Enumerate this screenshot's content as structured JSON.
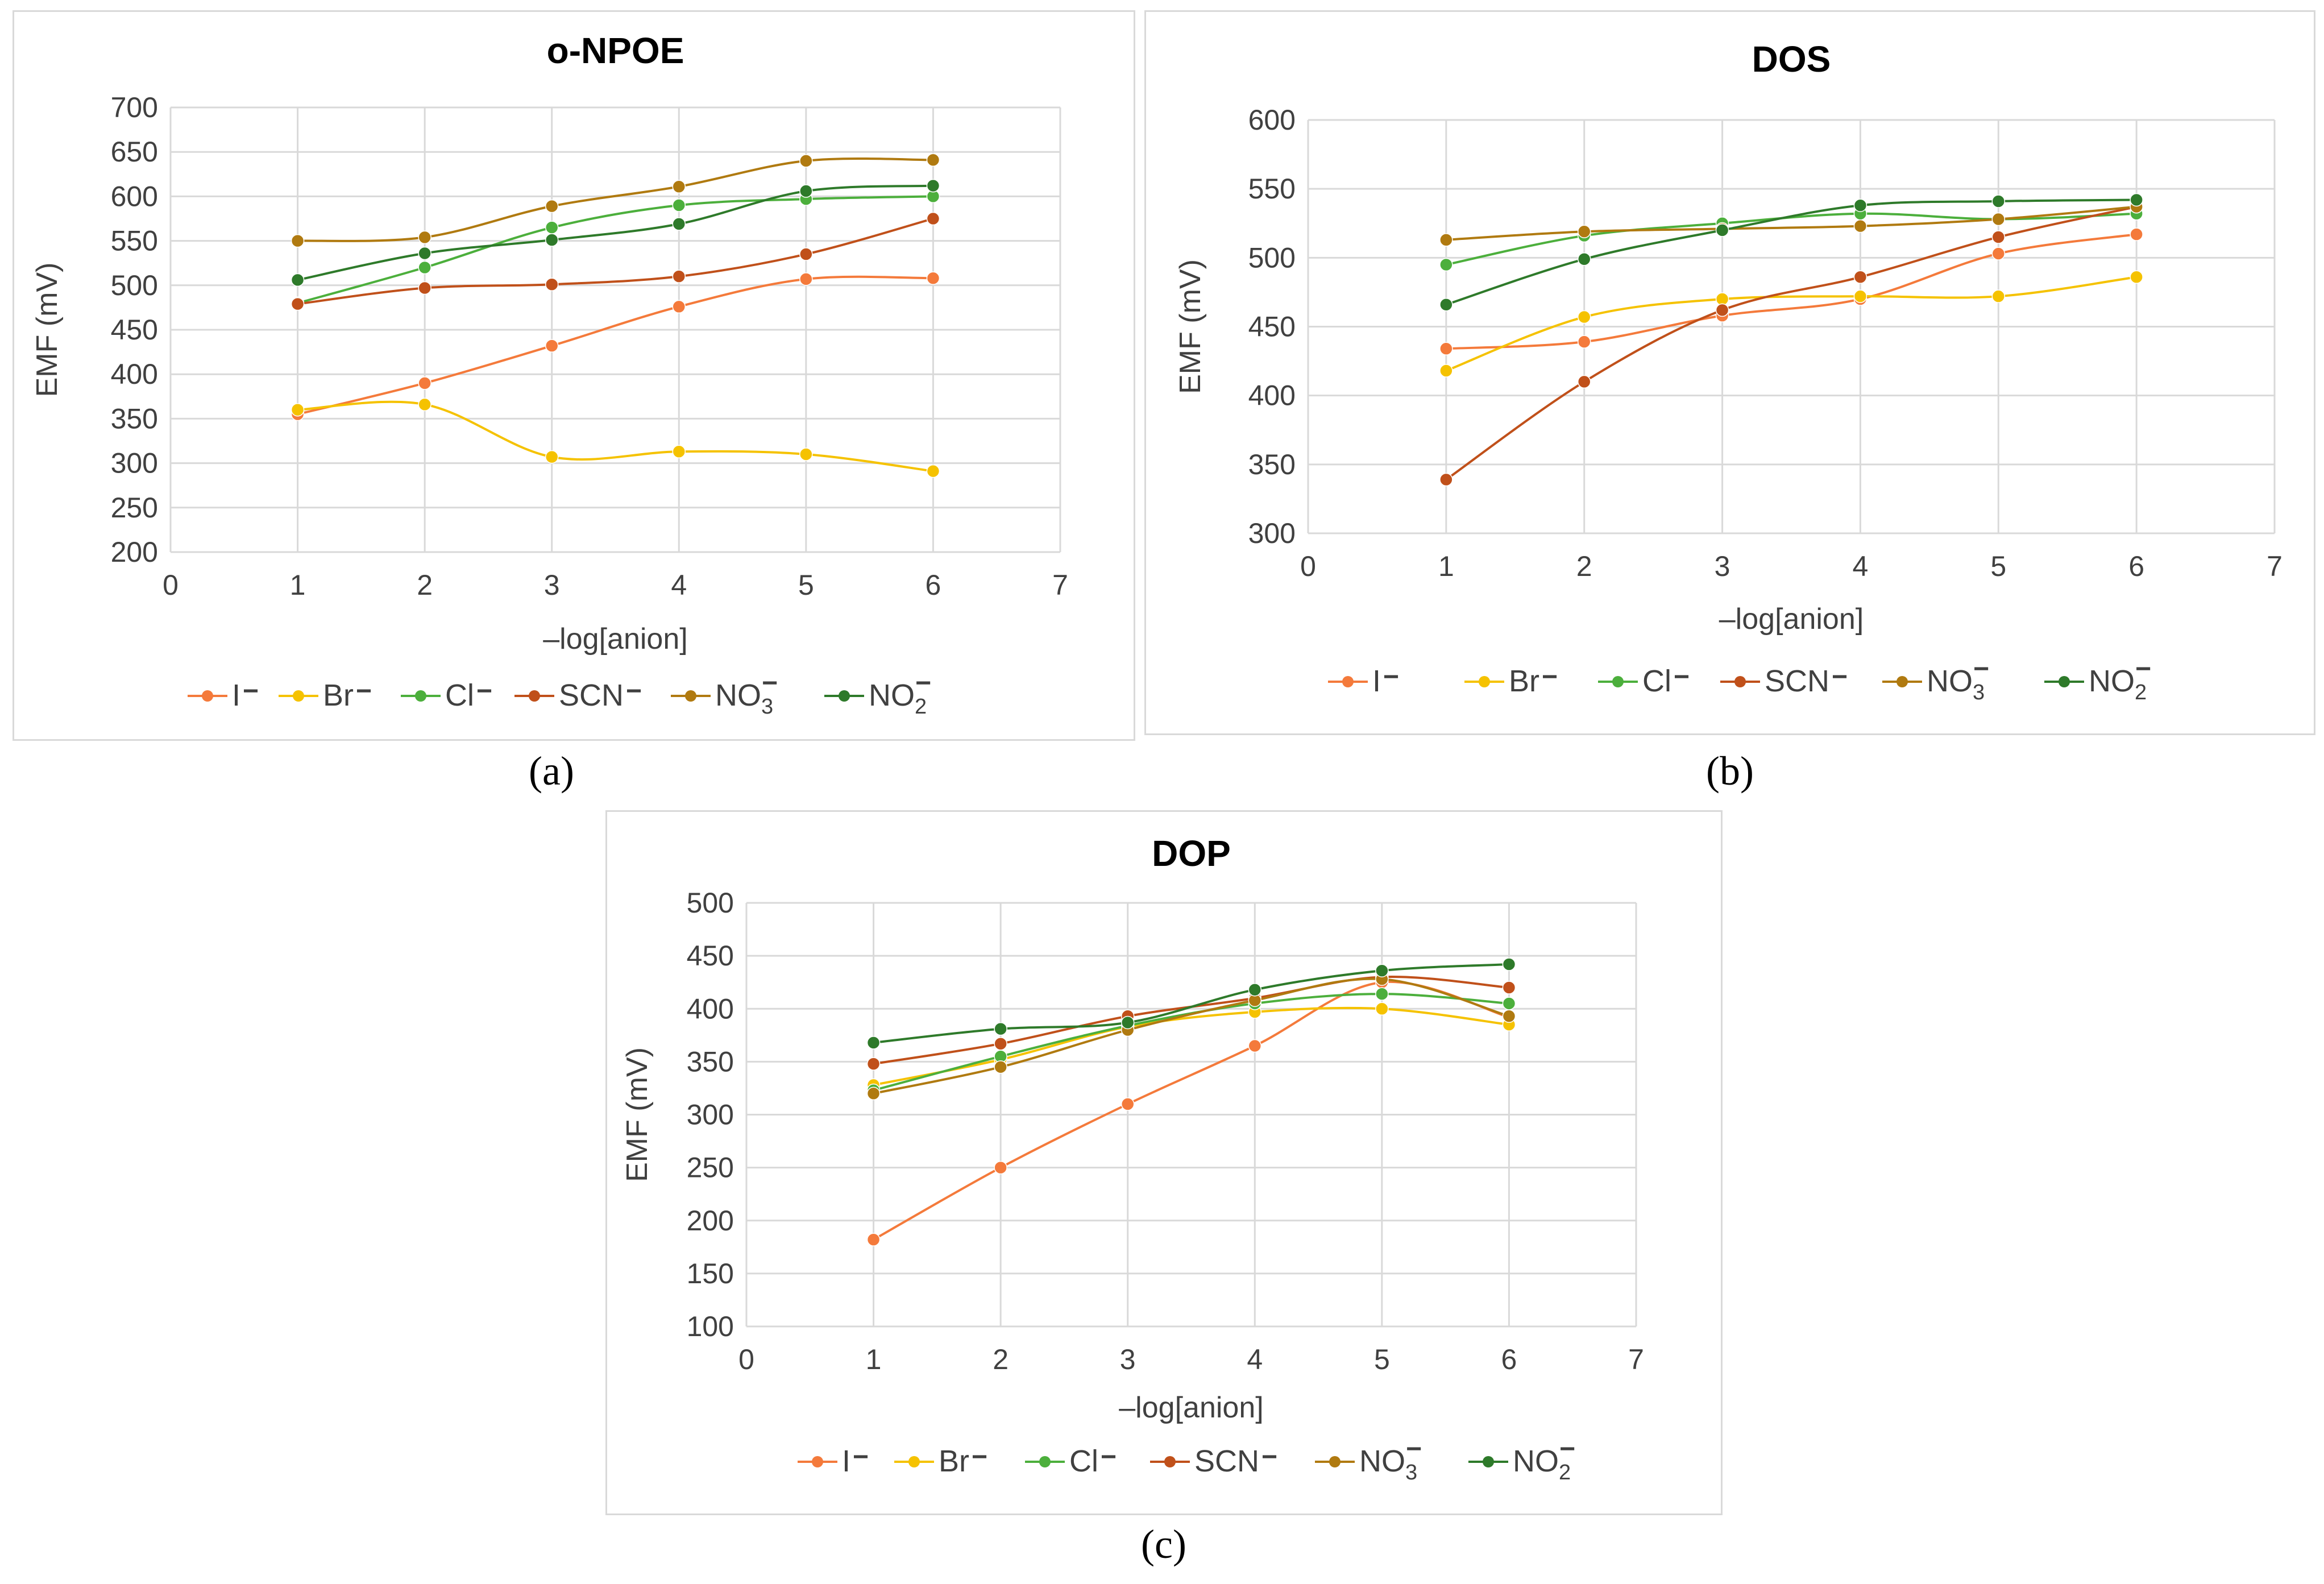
{
  "figure": {
    "captions": [
      "(a)",
      "(b)",
      "(c)"
    ]
  },
  "colors": {
    "I": "#f47a3b",
    "Br": "#f5c200",
    "Cl": "#4caf3c",
    "SCN": "#c0501a",
    "NO3": "#b07a10",
    "NO2": "#2e7a2a",
    "grid": "#d9d9d9",
    "axis_text": "#404040"
  },
  "chart_data": [
    {
      "type": "line",
      "title": "o-NPOE",
      "xlabel": "–log[anion]",
      "ylabel": "EMF (mV)",
      "xlim": [
        0,
        7
      ],
      "ylim": [
        200,
        700
      ],
      "xticks": [
        "0",
        "1",
        "2",
        "3",
        "4",
        "5",
        "6",
        "7"
      ],
      "yticks": [
        "200",
        "250",
        "300",
        "350",
        "400",
        "450",
        "500",
        "550",
        "600",
        "650",
        "700"
      ],
      "x": [
        1,
        2,
        3,
        4,
        5,
        6
      ],
      "legend_position": "bottom",
      "series": [
        {
          "key": "I",
          "name": "I",
          "superscript": "−",
          "subscript": "",
          "values": [
            355,
            390,
            432,
            476,
            507,
            508
          ]
        },
        {
          "key": "Br",
          "name": "Br",
          "superscript": "−",
          "subscript": "",
          "values": [
            360,
            366,
            307,
            313,
            310,
            291
          ]
        },
        {
          "key": "Cl",
          "name": "Cl",
          "superscript": "−",
          "subscript": "",
          "values": [
            480,
            520,
            565,
            590,
            597,
            600
          ]
        },
        {
          "key": "SCN",
          "name": "SCN",
          "superscript": "−",
          "subscript": "",
          "values": [
            479,
            497,
            501,
            510,
            535,
            575
          ]
        },
        {
          "key": "NO3",
          "name": "NO",
          "superscript": "−",
          "subscript": "3",
          "values": [
            550,
            554,
            589,
            611,
            640,
            641
          ]
        },
        {
          "key": "NO2",
          "name": "NO",
          "superscript": "−",
          "subscript": "2",
          "values": [
            506,
            536,
            551,
            569,
            606,
            612
          ]
        }
      ]
    },
    {
      "type": "line",
      "title": "DOS",
      "xlabel": "–log[anion]",
      "ylabel": "EMF (mV)",
      "xlim": [
        0,
        7
      ],
      "ylim": [
        300,
        600
      ],
      "xticks": [
        "0",
        "1",
        "2",
        "3",
        "4",
        "5",
        "6",
        "7"
      ],
      "yticks": [
        "300",
        "350",
        "400",
        "450",
        "500",
        "550",
        "600"
      ],
      "x": [
        1,
        2,
        3,
        4,
        5,
        6
      ],
      "legend_position": "bottom",
      "series": [
        {
          "key": "I",
          "name": "I",
          "superscript": "−",
          "subscript": "",
          "values": [
            434,
            439,
            458,
            470,
            503,
            517
          ]
        },
        {
          "key": "Br",
          "name": "Br",
          "superscript": "−",
          "subscript": "",
          "values": [
            418,
            457,
            470,
            472,
            472,
            486
          ]
        },
        {
          "key": "Cl",
          "name": "Cl",
          "superscript": "−",
          "subscript": "",
          "values": [
            495,
            516,
            525,
            532,
            528,
            532
          ]
        },
        {
          "key": "SCN",
          "name": "SCN",
          "superscript": "−",
          "subscript": "",
          "values": [
            339,
            410,
            462,
            486,
            515,
            537
          ]
        },
        {
          "key": "NO3",
          "name": "NO",
          "superscript": "−",
          "subscript": "3",
          "values": [
            513,
            519,
            521,
            523,
            528,
            537
          ]
        },
        {
          "key": "NO2",
          "name": "NO",
          "superscript": "−",
          "subscript": "2",
          "values": [
            466,
            499,
            520,
            538,
            541,
            542
          ]
        }
      ]
    },
    {
      "type": "line",
      "title": "DOP",
      "xlabel": "–log[anion]",
      "ylabel": "EMF (mV)",
      "xlim": [
        0,
        7
      ],
      "ylim": [
        100,
        500
      ],
      "xticks": [
        "0",
        "1",
        "2",
        "3",
        "4",
        "5",
        "6",
        "7"
      ],
      "yticks": [
        "100",
        "150",
        "200",
        "250",
        "300",
        "350",
        "400",
        "450",
        "500"
      ],
      "x": [
        1,
        2,
        3,
        4,
        5,
        6
      ],
      "legend_position": "bottom",
      "series": [
        {
          "key": "I",
          "name": "I",
          "superscript": "−",
          "subscript": "",
          "values": [
            182,
            250,
            310,
            365,
            425,
            392
          ]
        },
        {
          "key": "Br",
          "name": "Br",
          "superscript": "−",
          "subscript": "",
          "values": [
            328,
            352,
            383,
            397,
            400,
            385
          ]
        },
        {
          "key": "Cl",
          "name": "Cl",
          "superscript": "−",
          "subscript": "",
          "values": [
            323,
            355,
            384,
            405,
            414,
            405
          ]
        },
        {
          "key": "SCN",
          "name": "SCN",
          "superscript": "−",
          "subscript": "",
          "values": [
            348,
            367,
            393,
            410,
            430,
            420
          ]
        },
        {
          "key": "NO3",
          "name": "NO",
          "superscript": "−",
          "subscript": "3",
          "values": [
            320,
            345,
            380,
            408,
            428,
            393
          ]
        },
        {
          "key": "NO2",
          "name": "NO",
          "superscript": "−",
          "subscript": "2",
          "values": [
            368,
            381,
            387,
            418,
            436,
            442
          ]
        }
      ]
    }
  ]
}
